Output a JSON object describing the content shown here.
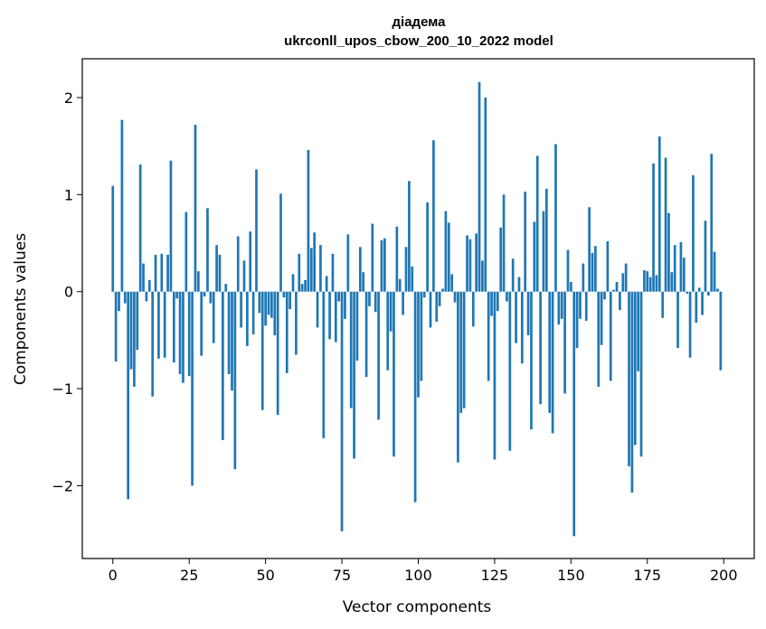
{
  "chart_data": {
    "type": "bar",
    "title": "діадема",
    "subtitle": "ukrconll_upos_cbow_200_10_2022 model",
    "xlabel": "Vector components",
    "ylabel": "Components values",
    "xlim": [
      -10,
      210
    ],
    "ylim": [
      -2.75,
      2.4
    ],
    "xticks": [
      0,
      25,
      50,
      75,
      100,
      125,
      150,
      175,
      200
    ],
    "xtick_labels": [
      "0",
      "25",
      "50",
      "75",
      "100",
      "125",
      "150",
      "175",
      "200"
    ],
    "yticks": [
      -2,
      -1,
      0,
      1,
      2
    ],
    "ytick_labels": [
      "−2",
      "−1",
      "0",
      "1",
      "2"
    ],
    "color": "#1f77b4",
    "grid": false,
    "x": [
      0,
      1,
      2,
      3,
      4,
      5,
      6,
      7,
      8,
      9,
      10,
      11,
      12,
      13,
      14,
      15,
      16,
      17,
      18,
      19,
      20,
      21,
      22,
      23,
      24,
      25,
      26,
      27,
      28,
      29,
      30,
      31,
      32,
      33,
      34,
      35,
      36,
      37,
      38,
      39,
      40,
      41,
      42,
      43,
      44,
      45,
      46,
      47,
      48,
      49,
      50,
      51,
      52,
      53,
      54,
      55,
      56,
      57,
      58,
      59,
      60,
      61,
      62,
      63,
      64,
      65,
      66,
      67,
      68,
      69,
      70,
      71,
      72,
      73,
      74,
      75,
      76,
      77,
      78,
      79,
      80,
      81,
      82,
      83,
      84,
      85,
      86,
      87,
      88,
      89,
      90,
      91,
      92,
      93,
      94,
      95,
      96,
      97,
      98,
      99,
      100,
      101,
      102,
      103,
      104,
      105,
      106,
      107,
      108,
      109,
      110,
      111,
      112,
      113,
      114,
      115,
      116,
      117,
      118,
      119,
      120,
      121,
      122,
      123,
      124,
      125,
      126,
      127,
      128,
      129,
      130,
      131,
      132,
      133,
      134,
      135,
      136,
      137,
      138,
      139,
      140,
      141,
      142,
      143,
      144,
      145,
      146,
      147,
      148,
      149,
      150,
      151,
      152,
      153,
      154,
      155,
      156,
      157,
      158,
      159,
      160,
      161,
      162,
      163,
      164,
      165,
      166,
      167,
      168,
      169,
      170,
      171,
      172,
      173,
      174,
      175,
      176,
      177,
      178,
      179,
      180,
      181,
      182,
      183,
      184,
      185,
      186,
      187,
      188,
      189,
      190,
      191,
      192,
      193,
      194,
      195,
      196,
      197,
      198,
      199
    ],
    "values": [
      1.09,
      -0.72,
      -0.2,
      1.77,
      -0.12,
      -2.14,
      -0.8,
      -0.98,
      -0.6,
      1.31,
      0.29,
      -0.1,
      0.12,
      -1.08,
      0.38,
      -0.69,
      0.39,
      -0.68,
      0.38,
      1.35,
      -0.73,
      -0.07,
      -0.85,
      -0.94,
      0.82,
      -0.87,
      -2.0,
      1.72,
      0.21,
      -0.66,
      -0.05,
      0.86,
      -0.12,
      -0.53,
      0.48,
      0.38,
      -1.53,
      0.08,
      -0.85,
      -1.02,
      -1.83,
      0.57,
      -0.37,
      0.32,
      -0.56,
      0.62,
      -0.44,
      1.26,
      -0.22,
      -1.22,
      -0.35,
      -0.24,
      -0.27,
      -0.45,
      -1.27,
      1.01,
      -0.06,
      -0.84,
      -0.18,
      0.18,
      -0.65,
      0.39,
      0.08,
      0.12,
      1.46,
      0.45,
      0.61,
      -0.37,
      0.48,
      -1.51,
      0.16,
      -0.49,
      0.39,
      -0.52,
      -0.1,
      -2.47,
      -0.28,
      0.59,
      -1.2,
      -1.72,
      -0.71,
      0.46,
      0.2,
      -0.88,
      -0.15,
      0.7,
      -0.21,
      -1.32,
      0.53,
      0.55,
      -0.81,
      -0.41,
      -1.7,
      0.67,
      0.13,
      -0.24,
      0.46,
      1.14,
      0.26,
      -2.17,
      -1.09,
      -0.92,
      -0.06,
      0.92,
      -0.37,
      1.56,
      -0.31,
      -0.15,
      0.03,
      0.83,
      0.71,
      0.18,
      -0.11,
      -1.76,
      -1.25,
      -1.2,
      0.58,
      0.54,
      -0.36,
      0.6,
      2.16,
      0.32,
      2.0,
      -0.92,
      -0.25,
      -1.73,
      -0.2,
      0.66,
      1.0,
      -0.1,
      -1.64,
      0.34,
      -0.53,
      0.15,
      -0.74,
      1.03,
      -0.45,
      -1.42,
      0.72,
      1.4,
      -1.16,
      0.83,
      1.06,
      -1.25,
      -1.46,
      1.52,
      -0.34,
      -0.28,
      -1.05,
      0.43,
      0.1,
      -2.52,
      -0.58,
      -0.28,
      0.29,
      -0.3,
      0.87,
      0.4,
      0.47,
      -0.98,
      -0.55,
      -0.08,
      0.52,
      -0.92,
      0.02,
      0.1,
      -0.19,
      0.19,
      0.29,
      -1.8,
      -2.07,
      -1.58,
      -0.82,
      -1.7,
      0.22,
      0.21,
      0.15,
      1.32,
      0.17,
      1.6,
      -0.27,
      1.38,
      0.81,
      0.2,
      0.48,
      -0.58,
      0.51,
      0.35,
      -0.02,
      -0.68,
      1.2,
      -0.32,
      0.04,
      -0.24,
      0.73,
      -0.04,
      1.42,
      0.41,
      0.03,
      -0.81
    ]
  }
}
